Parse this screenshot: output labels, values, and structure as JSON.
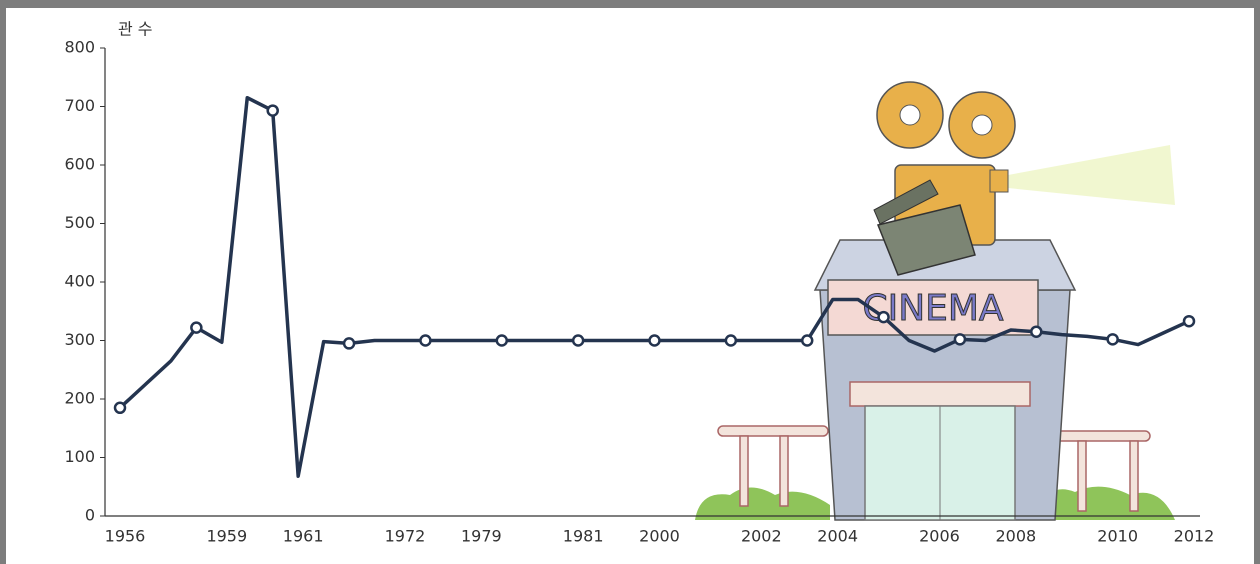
{
  "chart_data": {
    "type": "line",
    "y_label": "관 수",
    "categories": [
      "1956",
      null,
      null,
      null,
      "1959",
      null,
      null,
      "1961",
      null,
      null,
      null,
      "1972",
      null,
      null,
      "1979",
      null,
      null,
      null,
      "1981",
      null,
      null,
      "2000",
      null,
      null,
      null,
      "2002",
      null,
      null,
      "2004",
      null,
      null,
      null,
      "2006",
      null,
      null,
      "2008",
      null,
      null,
      null,
      "2010",
      null,
      null,
      "2012"
    ],
    "values": [
      185,
      225,
      265,
      322,
      297,
      715,
      693,
      68,
      298,
      295,
      300,
      300,
      300,
      300,
      300,
      300,
      300,
      300,
      300,
      300,
      300,
      300,
      300,
      300,
      300,
      300,
      300,
      300,
      370,
      370,
      340,
      300,
      282,
      302,
      300,
      318,
      315,
      310,
      307,
      302,
      293,
      313,
      333
    ],
    "color": "#24344f",
    "marker_step": 3,
    "ylim": [
      0,
      800
    ],
    "yticks": [
      0,
      100,
      200,
      300,
      400,
      500,
      600,
      700,
      800
    ]
  },
  "illustration": {
    "sign": "CINEMA"
  }
}
